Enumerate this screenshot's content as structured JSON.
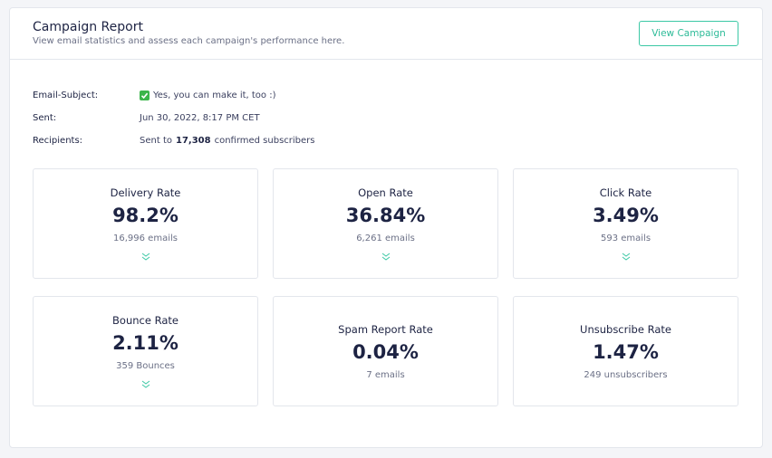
{
  "header": {
    "title": "Campaign Report",
    "subtitle": "View email statistics and assess each campaign's performance here.",
    "button": "View Campaign"
  },
  "details": [
    {
      "label": "Email-Subject:",
      "value": "Yes, you can make it, too :)"
    },
    {
      "label": "Sent:",
      "value": "Jun 30, 2022, 8:17 PM CET"
    },
    {
      "label": "Recipients:",
      "prefix": "Sent to",
      "highlight": "17,308",
      "suffix": "confirmed subscribers"
    }
  ],
  "cards": [
    {
      "title": "Delivery Rate",
      "value": "98.2%",
      "detail": "16,996 emails",
      "expandable": true
    },
    {
      "title": "Open Rate",
      "value": "36.84%",
      "detail": "6,261 emails",
      "expandable": true
    },
    {
      "title": "Click Rate",
      "value": "3.49%",
      "detail": "593 emails",
      "expandable": true
    },
    {
      "title": "Bounce Rate",
      "value": "2.11%",
      "detail": "359 Bounces",
      "expandable": true
    },
    {
      "title": "Spam Report Rate",
      "value": "0.04%",
      "detail": "7 emails",
      "expandable": false
    },
    {
      "title": "Unsubscribe Rate",
      "value": "1.47%",
      "detail": "249 unsubscribers",
      "expandable": false
    }
  ]
}
